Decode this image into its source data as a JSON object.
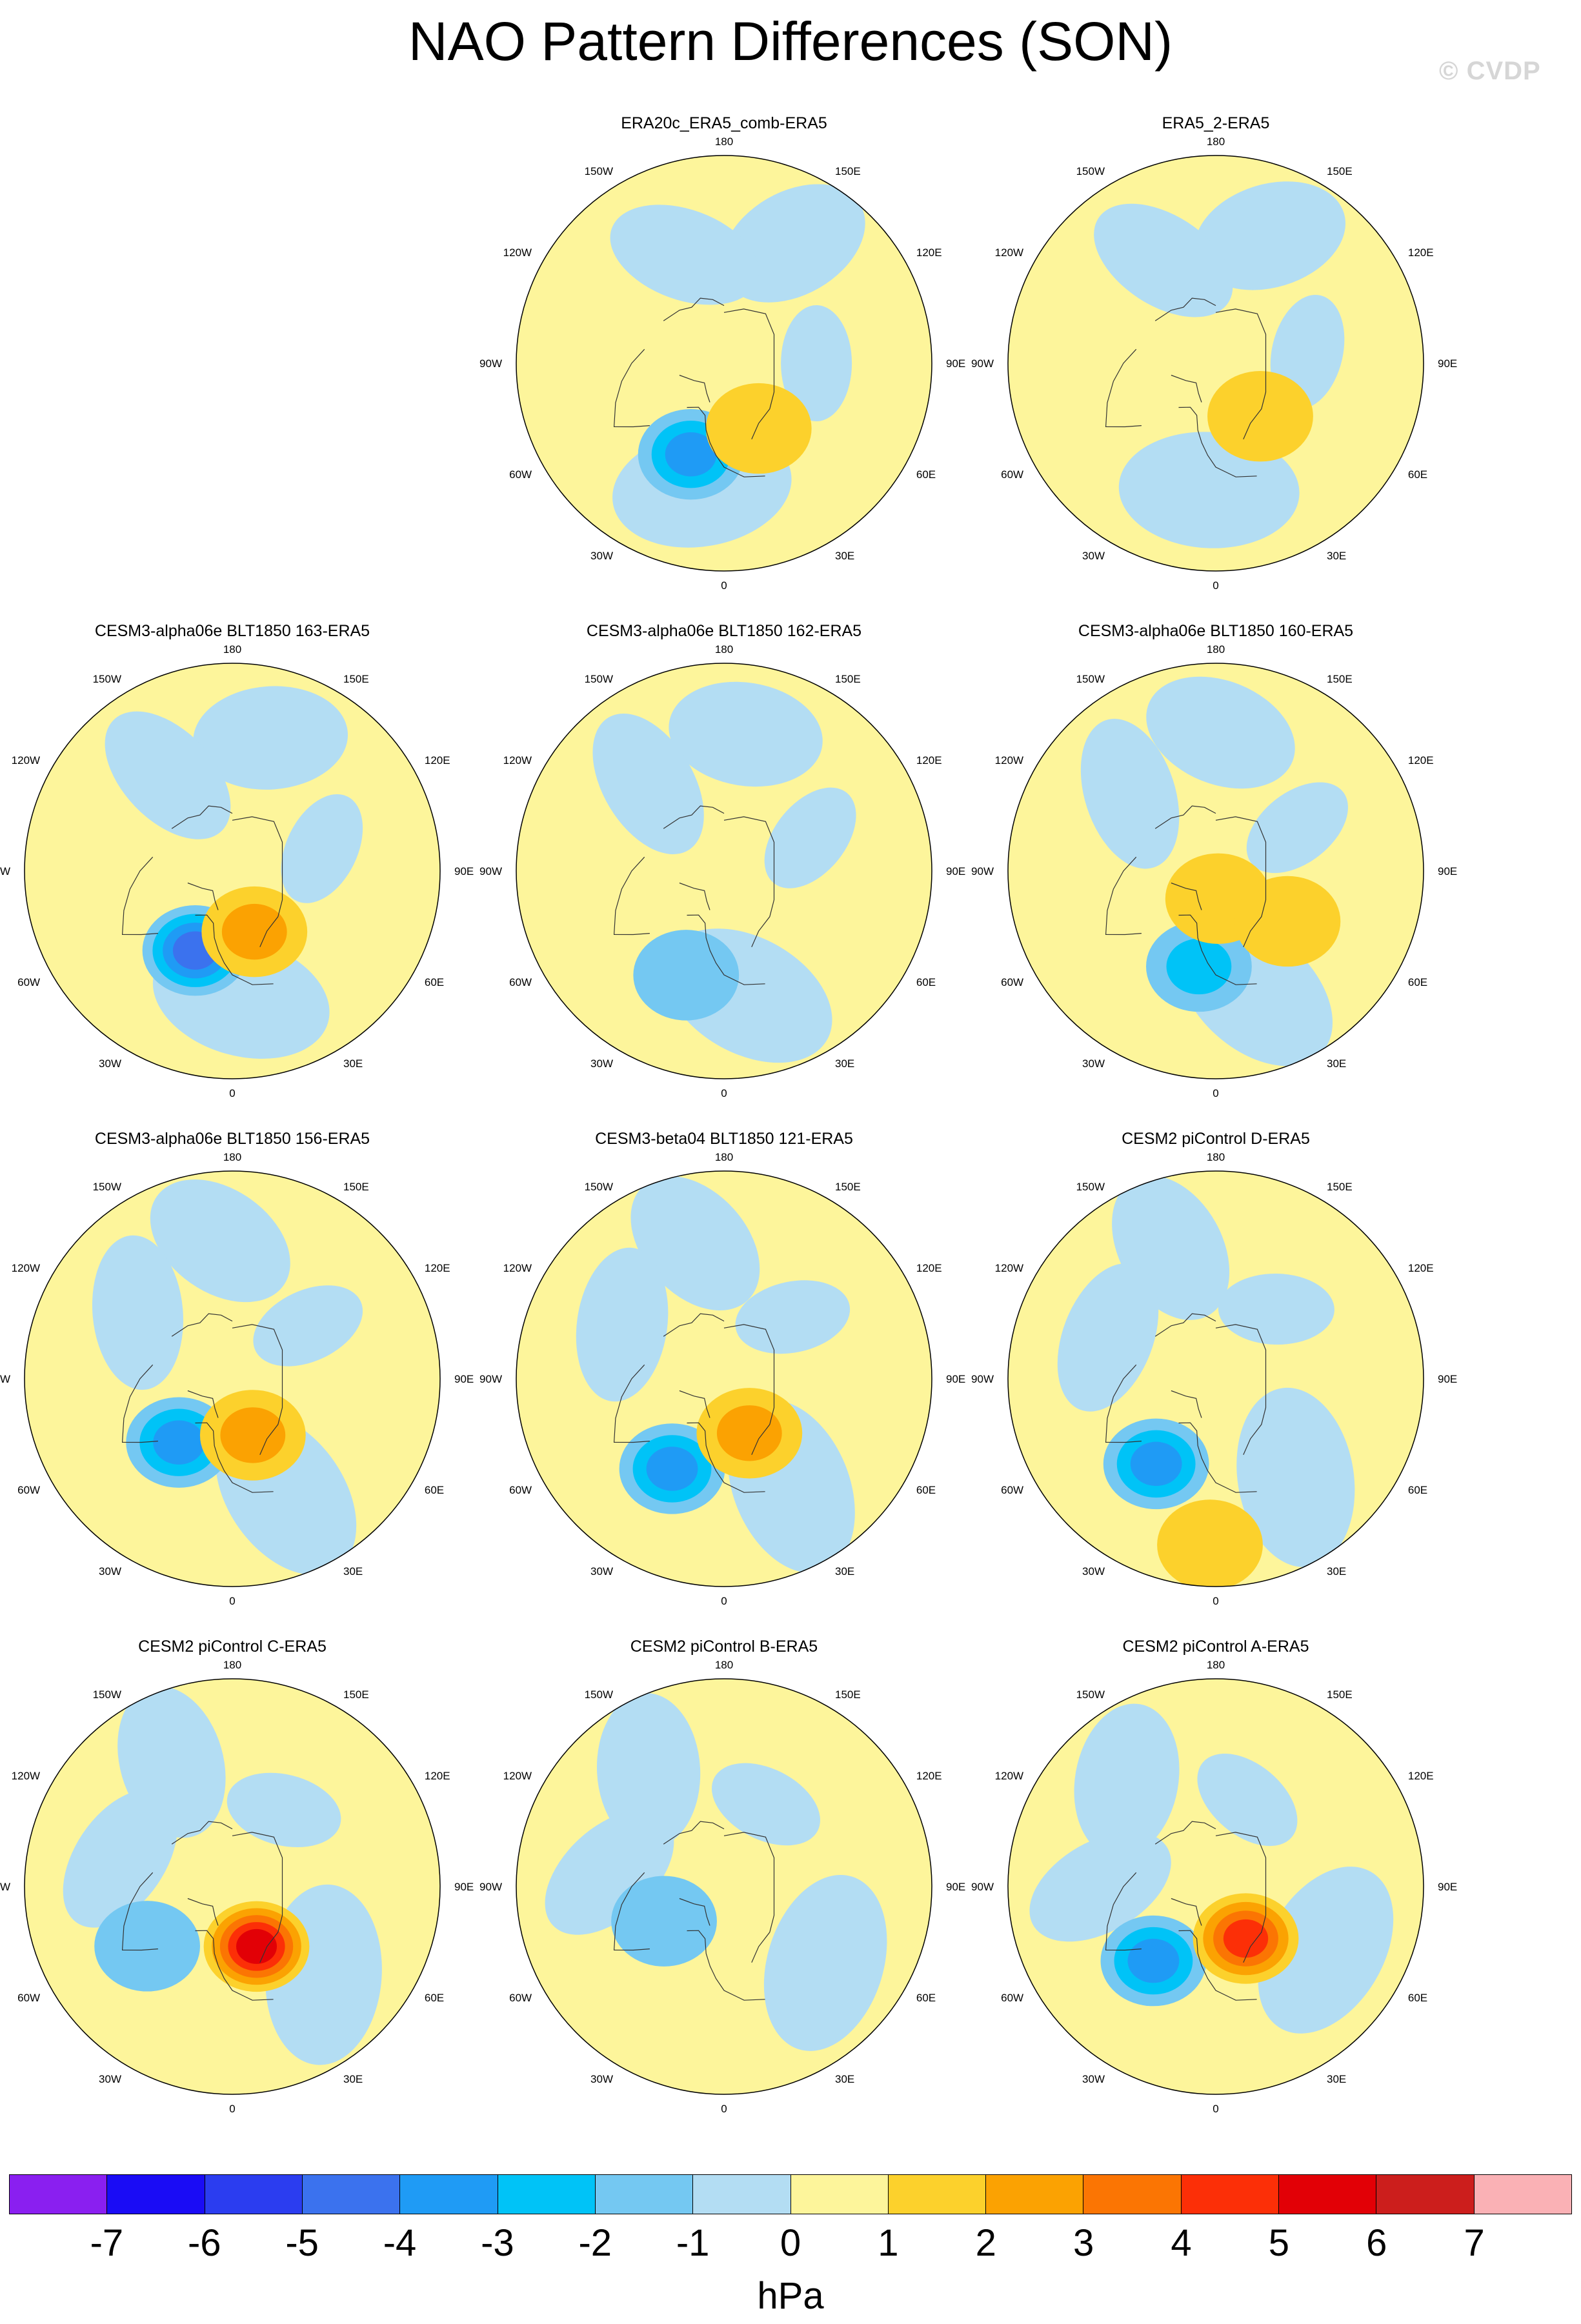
{
  "title": "NAO Pattern Differences (SON)",
  "watermark": "© CVDP",
  "lon_labels": {
    "l180": "180",
    "l150w": "150W",
    "l150e": "150E",
    "l120w": "120W",
    "l120e": "120E",
    "l90w": "90W",
    "l90e": "90E",
    "l60w": "60W",
    "l60e": "60E",
    "l30w": "30W",
    "l30e": "30E",
    "l0": "0"
  },
  "panels": [
    {
      "title": "ERA20c_ERA5_comb-ERA5",
      "blobs": [
        {
          "lon": -20,
          "colat": 42,
          "level": -3
        },
        {
          "lon": 28,
          "colat": 32,
          "level": 1
        }
      ]
    },
    {
      "title": "ERA5_2-ERA5",
      "blobs": [
        {
          "lon": 40,
          "colat": 30,
          "level": 1
        }
      ]
    },
    {
      "title": "CESM3-alpha06e BLT1850 163-ERA5",
      "blobs": [
        {
          "lon": -25,
          "colat": 38,
          "level": -4
        },
        {
          "lon": 20,
          "colat": 28,
          "level": 2
        }
      ]
    },
    {
      "title": "CESM3-alpha06e BLT1850 162-ERA5",
      "blobs": [
        {
          "lon": -20,
          "colat": 48,
          "level": -1
        }
      ]
    },
    {
      "title": "CESM3-alpha06e BLT1850 160-ERA5",
      "blobs": [
        {
          "lon": -10,
          "colat": 42,
          "level": -2
        },
        {
          "lon": 5,
          "colat": 12,
          "level": 1
        },
        {
          "lon": 55,
          "colat": 38,
          "level": 1
        }
      ]
    },
    {
      "title": "CESM3-alpha06e BLT1850 156-ERA5",
      "blobs": [
        {
          "lon": -40,
          "colat": 36,
          "level": -3
        },
        {
          "lon": 20,
          "colat": 26,
          "level": 2
        }
      ]
    },
    {
      "title": "CESM3-beta04 BLT1850 121-ERA5",
      "blobs": [
        {
          "lon": -30,
          "colat": 45,
          "level": -3
        },
        {
          "lon": 25,
          "colat": 26,
          "level": 2
        }
      ]
    },
    {
      "title": "CESM2 piControl D-ERA5",
      "blobs": [
        {
          "lon": -35,
          "colat": 45,
          "level": -3
        },
        {
          "lon": -2,
          "colat": 72,
          "level": 1
        }
      ]
    },
    {
      "title": "CESM2 piControl C-ERA5",
      "blobs": [
        {
          "lon": -55,
          "colat": 45,
          "level": -1
        },
        {
          "lon": 22,
          "colat": 28,
          "level": 5
        }
      ]
    },
    {
      "title": "CESM2 piControl B-ERA5",
      "blobs": [
        {
          "lon": -60,
          "colat": 30,
          "level": -1
        }
      ]
    },
    {
      "title": "CESM2 piControl A-ERA5",
      "blobs": [
        {
          "lon": -40,
          "colat": 42,
          "level": -3
        },
        {
          "lon": 30,
          "colat": 26,
          "level": 4
        }
      ]
    }
  ],
  "colorbar": {
    "units": "hPa",
    "labels": [
      "-7",
      "-6",
      "-5",
      "-4",
      "-3",
      "-2",
      "-1",
      "0",
      "1",
      "2",
      "3",
      "4",
      "5",
      "6",
      "7"
    ],
    "colors": [
      "#8a1ff0",
      "#1a0cf5",
      "#2b3df0",
      "#3b72ee",
      "#1f9bf5",
      "#00c3f7",
      "#74c8f2",
      "#b3ddf3",
      "#fdf59b",
      "#fcd12c",
      "#fba202",
      "#fb7503",
      "#fc2f07",
      "#e20006",
      "#cc1e1c",
      "#fab1b5"
    ]
  }
}
